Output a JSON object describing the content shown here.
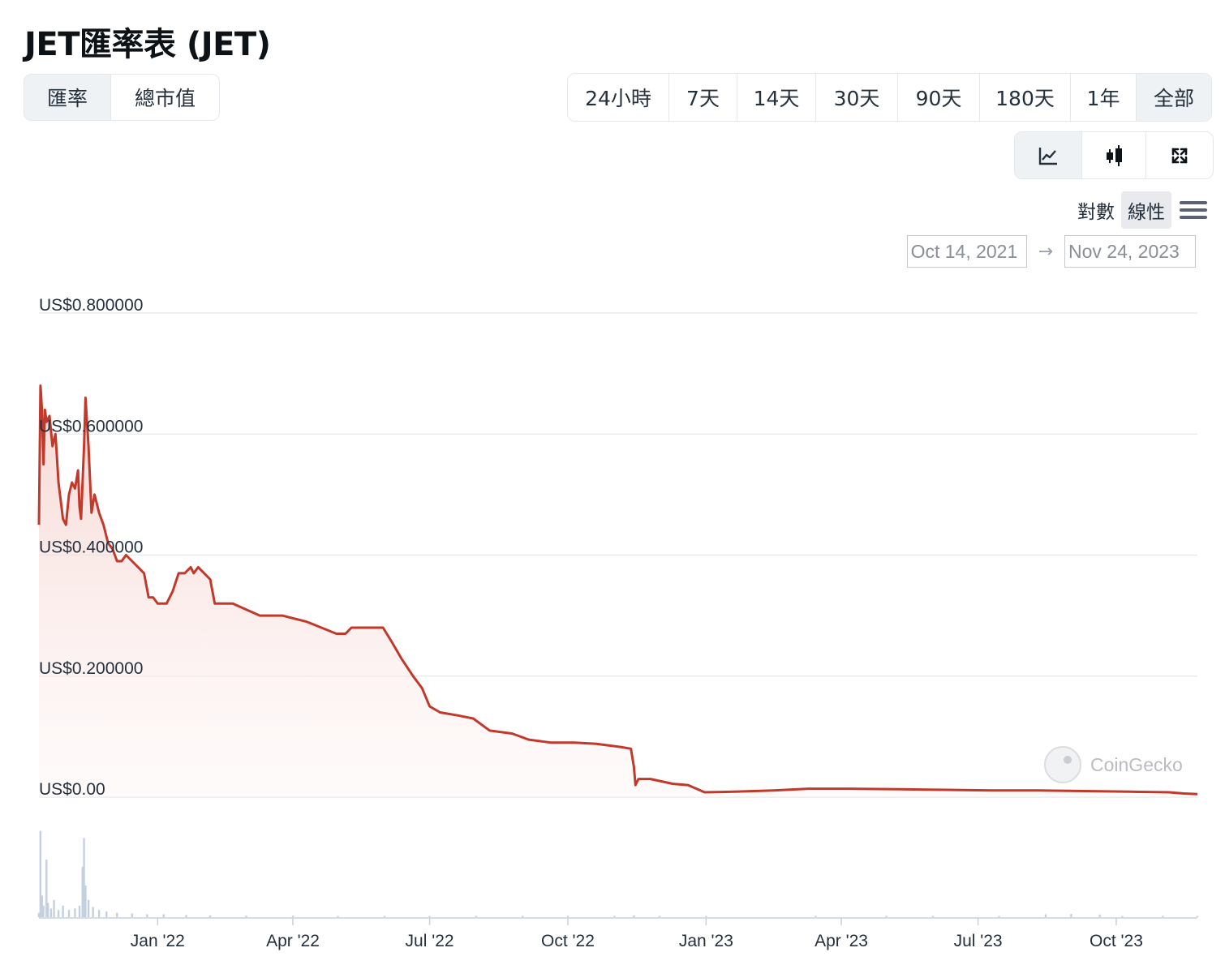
{
  "page": {
    "title": "JET匯率表 (JET)"
  },
  "metric_toggle": {
    "items": [
      {
        "label": "匯率",
        "active": true
      },
      {
        "label": "總市值",
        "active": false
      }
    ]
  },
  "range_toggle": {
    "items": [
      {
        "label": "24小時",
        "active": false
      },
      {
        "label": "7天",
        "active": false
      },
      {
        "label": "14天",
        "active": false
      },
      {
        "label": "30天",
        "active": false
      },
      {
        "label": "90天",
        "active": false
      },
      {
        "label": "180天",
        "active": false
      },
      {
        "label": "1年",
        "active": false
      },
      {
        "label": "全部",
        "active": true
      }
    ]
  },
  "view_toggle": {
    "items": [
      {
        "icon": "line-chart-icon",
        "active": true
      },
      {
        "icon": "candlestick-icon",
        "active": false
      },
      {
        "icon": "expand-icon",
        "active": false
      }
    ]
  },
  "scale": {
    "log_label": "對數",
    "linear_label": "線性",
    "selected": "linear",
    "menu_icon": "hamburger-menu-icon"
  },
  "date_range": {
    "from": "Oct 14, 2021",
    "to": "Nov 24, 2023"
  },
  "watermark": {
    "text": "CoinGecko",
    "icon": "gecko-logo-icon"
  },
  "colors": {
    "line": "#c0392b",
    "area_top": "#f4cfcb",
    "volume": "#c4d0df",
    "grid": "#e9ecef"
  },
  "chart_data": {
    "type": "area",
    "x_type": "date",
    "x_range": [
      "2021-10-14",
      "2023-11-24"
    ],
    "y_range": [
      0,
      0.8
    ],
    "y_ticks": [
      {
        "value": 0.8,
        "label": "US$0.800000"
      },
      {
        "value": 0.6,
        "label": "US$0.600000"
      },
      {
        "value": 0.4,
        "label": "US$0.400000"
      },
      {
        "value": 0.2,
        "label": "US$0.200000"
      },
      {
        "value": 0,
        "label": "US$0.00"
      }
    ],
    "x_ticks": [
      {
        "date": "2022-01-01",
        "label": "Jan '22"
      },
      {
        "date": "2022-04-01",
        "label": "Apr '22"
      },
      {
        "date": "2022-07-01",
        "label": "Jul '22"
      },
      {
        "date": "2022-10-01",
        "label": "Oct '22"
      },
      {
        "date": "2023-01-01",
        "label": "Jan '23"
      },
      {
        "date": "2023-04-01",
        "label": "Apr '23"
      },
      {
        "date": "2023-07-01",
        "label": "Jul '23"
      },
      {
        "date": "2023-10-01",
        "label": "Oct '23"
      }
    ],
    "grid": true,
    "series": [
      {
        "points": [
          [
            "2021-10-14",
            0.45
          ],
          [
            "2021-10-15",
            0.68
          ],
          [
            "2021-10-16",
            0.64
          ],
          [
            "2021-10-17",
            0.55
          ],
          [
            "2021-10-18",
            0.64
          ],
          [
            "2021-10-19",
            0.62
          ],
          [
            "2021-10-21",
            0.63
          ],
          [
            "2021-10-23",
            0.58
          ],
          [
            "2021-10-25",
            0.6
          ],
          [
            "2021-10-27",
            0.52
          ],
          [
            "2021-10-30",
            0.46
          ],
          [
            "2021-11-01",
            0.45
          ],
          [
            "2021-11-03",
            0.5
          ],
          [
            "2021-11-05",
            0.52
          ],
          [
            "2021-11-07",
            0.51
          ],
          [
            "2021-11-09",
            0.54
          ],
          [
            "2021-11-10",
            0.48
          ],
          [
            "2021-11-11",
            0.46
          ],
          [
            "2021-11-13",
            0.58
          ],
          [
            "2021-11-14",
            0.66
          ],
          [
            "2021-11-16",
            0.58
          ],
          [
            "2021-11-18",
            0.47
          ],
          [
            "2021-11-20",
            0.5
          ],
          [
            "2021-11-23",
            0.47
          ],
          [
            "2021-11-26",
            0.45
          ],
          [
            "2021-11-29",
            0.42
          ],
          [
            "2021-12-02",
            0.41
          ],
          [
            "2021-12-05",
            0.39
          ],
          [
            "2021-12-08",
            0.39
          ],
          [
            "2021-12-11",
            0.4
          ],
          [
            "2021-12-15",
            0.39
          ],
          [
            "2021-12-19",
            0.38
          ],
          [
            "2021-12-23",
            0.37
          ],
          [
            "2021-12-26",
            0.33
          ],
          [
            "2021-12-29",
            0.33
          ],
          [
            "2022-01-01",
            0.32
          ],
          [
            "2022-01-07",
            0.32
          ],
          [
            "2022-01-11",
            0.34
          ],
          [
            "2022-01-15",
            0.37
          ],
          [
            "2022-01-19",
            0.37
          ],
          [
            "2022-01-23",
            0.38
          ],
          [
            "2022-01-25",
            0.37
          ],
          [
            "2022-01-28",
            0.38
          ],
          [
            "2022-02-01",
            0.37
          ],
          [
            "2022-02-05",
            0.36
          ],
          [
            "2022-02-08",
            0.32
          ],
          [
            "2022-02-20",
            0.32
          ],
          [
            "2022-03-01",
            0.31
          ],
          [
            "2022-03-10",
            0.3
          ],
          [
            "2022-03-25",
            0.3
          ],
          [
            "2022-04-10",
            0.29
          ],
          [
            "2022-04-20",
            0.28
          ],
          [
            "2022-04-30",
            0.27
          ],
          [
            "2022-05-06",
            0.27
          ],
          [
            "2022-05-10",
            0.28
          ],
          [
            "2022-05-20",
            0.28
          ],
          [
            "2022-05-31",
            0.28
          ],
          [
            "2022-06-05",
            0.26
          ],
          [
            "2022-06-12",
            0.23
          ],
          [
            "2022-06-20",
            0.2
          ],
          [
            "2022-06-26",
            0.18
          ],
          [
            "2022-07-01",
            0.15
          ],
          [
            "2022-07-08",
            0.14
          ],
          [
            "2022-07-20",
            0.135
          ],
          [
            "2022-07-30",
            0.13
          ],
          [
            "2022-08-10",
            0.11
          ],
          [
            "2022-08-25",
            0.105
          ],
          [
            "2022-09-05",
            0.095
          ],
          [
            "2022-09-20",
            0.09
          ],
          [
            "2022-10-05",
            0.09
          ],
          [
            "2022-10-20",
            0.088
          ],
          [
            "2022-11-05",
            0.083
          ],
          [
            "2022-11-12",
            0.08
          ],
          [
            "2022-11-14",
            0.05
          ],
          [
            "2022-11-15",
            0.02
          ],
          [
            "2022-11-17",
            0.03
          ],
          [
            "2022-11-25",
            0.03
          ],
          [
            "2022-12-10",
            0.022
          ],
          [
            "2022-12-20",
            0.02
          ],
          [
            "2022-12-31",
            0.008
          ],
          [
            "2023-01-20",
            0.009
          ],
          [
            "2023-02-15",
            0.011
          ],
          [
            "2023-03-10",
            0.014
          ],
          [
            "2023-04-05",
            0.014
          ],
          [
            "2023-05-10",
            0.013
          ],
          [
            "2023-06-10",
            0.012
          ],
          [
            "2023-07-10",
            0.011
          ],
          [
            "2023-08-10",
            0.011
          ],
          [
            "2023-09-10",
            0.01
          ],
          [
            "2023-10-10",
            0.009
          ],
          [
            "2023-11-05",
            0.008
          ],
          [
            "2023-11-15",
            0.006
          ],
          [
            "2023-11-24",
            0.005
          ]
        ]
      }
    ],
    "volume": [
      [
        "2021-10-14",
        0.03
      ],
      [
        "2021-10-15",
        0.6
      ],
      [
        "2021-10-16",
        0.15
      ],
      [
        "2021-10-17",
        0.08
      ],
      [
        "2021-10-19",
        0.4
      ],
      [
        "2021-10-20",
        0.1
      ],
      [
        "2021-10-22",
        0.06
      ],
      [
        "2021-10-24",
        0.12
      ],
      [
        "2021-10-27",
        0.05
      ],
      [
        "2021-10-30",
        0.08
      ],
      [
        "2021-11-03",
        0.05
      ],
      [
        "2021-11-07",
        0.06
      ],
      [
        "2021-11-10",
        0.08
      ],
      [
        "2021-11-12",
        0.35
      ],
      [
        "2021-11-13",
        0.55
      ],
      [
        "2021-11-14",
        0.22
      ],
      [
        "2021-11-16",
        0.12
      ],
      [
        "2021-11-19",
        0.07
      ],
      [
        "2021-11-23",
        0.05
      ],
      [
        "2021-11-28",
        0.04
      ],
      [
        "2021-12-05",
        0.03
      ],
      [
        "2021-12-15",
        0.025
      ],
      [
        "2021-12-25",
        0.02
      ],
      [
        "2022-01-05",
        0.02
      ],
      [
        "2022-01-20",
        0.015
      ],
      [
        "2022-02-05",
        0.012
      ],
      [
        "2022-03-01",
        0.01
      ],
      [
        "2022-04-01",
        0.01
      ],
      [
        "2022-05-01",
        0.008
      ],
      [
        "2022-06-01",
        0.008
      ],
      [
        "2022-07-01",
        0.006
      ],
      [
        "2022-08-01",
        0.006
      ],
      [
        "2022-09-01",
        0.005
      ],
      [
        "2022-10-01",
        0.005
      ],
      [
        "2022-11-01",
        0.005
      ],
      [
        "2022-11-14",
        0.012
      ],
      [
        "2022-12-01",
        0.004
      ],
      [
        "2023-01-01",
        0.004
      ],
      [
        "2023-03-15",
        0.006
      ],
      [
        "2023-05-01",
        0.006
      ],
      [
        "2023-06-01",
        0.005
      ],
      [
        "2023-07-15",
        0.004
      ],
      [
        "2023-08-15",
        0.02
      ],
      [
        "2023-09-01",
        0.022
      ],
      [
        "2023-09-20",
        0.018
      ],
      [
        "2023-10-05",
        0.004
      ],
      [
        "2023-11-01",
        0.004
      ],
      [
        "2023-11-24",
        0.004
      ]
    ]
  }
}
